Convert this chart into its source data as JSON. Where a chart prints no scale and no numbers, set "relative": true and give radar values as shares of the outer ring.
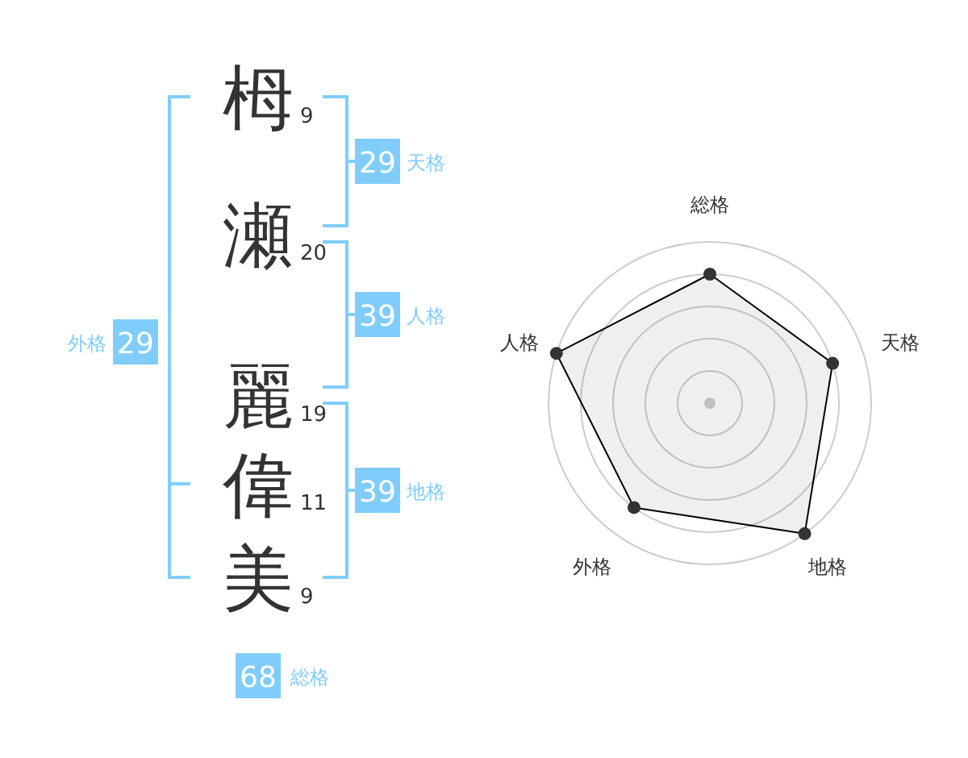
{
  "chart_data": [
    {
      "type": "other",
      "color": "#80cdfb",
      "annotations": [
        "栂",
        "9",
        "瀬",
        "20",
        "麗",
        "19",
        "偉",
        "11",
        "美",
        "9",
        "29",
        "天格",
        "39",
        "人格",
        "39",
        "地格",
        "29",
        "外格",
        "68",
        "総格"
      ]
    },
    {
      "type": "radar",
      "relative": true,
      "categories": [
        "総格",
        "天格",
        "地格",
        "外格",
        "人格"
      ],
      "marker": "circle",
      "series": [
        {
          "color": "#333333",
          "values": [
            0.8,
            0.8,
            1.0,
            0.8,
            1.0
          ]
        }
      ]
    }
  ]
}
